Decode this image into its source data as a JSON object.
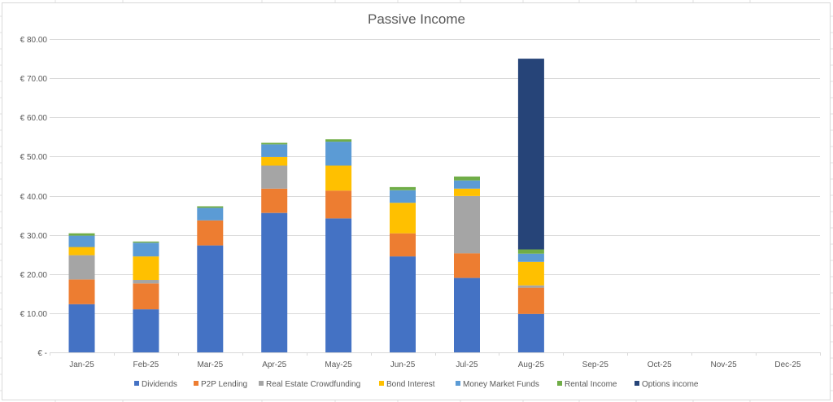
{
  "chart_data": {
    "type": "bar",
    "stacked": true,
    "title": "Passive Income",
    "xlabel": "",
    "ylabel": "",
    "ylim": [
      0,
      80
    ],
    "y_ticks": [
      0,
      10,
      20,
      30,
      40,
      50,
      60,
      70,
      80
    ],
    "y_tick_labels": [
      "€ -",
      "€ 10.00",
      "€ 20.00",
      "€ 30.00",
      "€ 40.00",
      "€ 50.00",
      "€ 60.00",
      "€ 70.00",
      "€ 80.00"
    ],
    "grid": true,
    "legend_position": "bottom",
    "categories": [
      "Jan-25",
      "Feb-25",
      "Mar-25",
      "Apr-25",
      "May-25",
      "Jun-25",
      "Jul-25",
      "Aug-25",
      "Sep-25",
      "Oct-25",
      "Nov-25",
      "Dec-25"
    ],
    "series": [
      {
        "name": "Dividends",
        "color": "#4472C4",
        "values": [
          12.3,
          11.0,
          27.3,
          35.6,
          34.2,
          24.5,
          19.0,
          9.8,
          0,
          0,
          0,
          0
        ]
      },
      {
        "name": "P2P Lending",
        "color": "#ED7D31",
        "values": [
          6.3,
          6.6,
          6.4,
          6.2,
          7.1,
          5.9,
          6.3,
          6.7,
          0,
          0,
          0,
          0
        ]
      },
      {
        "name": "Real Estate Crowdfunding",
        "color": "#A5A5A5",
        "values": [
          6.2,
          0.9,
          0,
          5.9,
          0,
          0,
          14.6,
          0.6,
          0,
          0,
          0,
          0
        ]
      },
      {
        "name": "Bond Interest",
        "color": "#FFC000",
        "values": [
          2.1,
          6.0,
          0,
          2.2,
          6.4,
          7.8,
          1.9,
          6.0,
          0,
          0,
          0,
          0
        ]
      },
      {
        "name": "Money Market Funds",
        "color": "#5B9BD5",
        "values": [
          2.9,
          3.5,
          3.2,
          3.2,
          6.1,
          3.2,
          2.1,
          2.1,
          0,
          0,
          0,
          0
        ]
      },
      {
        "name": "Rental Income",
        "color": "#70AD47",
        "values": [
          0.6,
          0.3,
          0.4,
          0.4,
          0.6,
          0.8,
          1.0,
          1.1,
          0,
          0,
          0,
          0
        ]
      },
      {
        "name": "Options income",
        "color": "#264478",
        "values": [
          0,
          0,
          0,
          0,
          0,
          0,
          0,
          48.7,
          0,
          0,
          0,
          0
        ]
      }
    ]
  },
  "colors": {
    "gridline": "#d9d9d9",
    "text": "#595959",
    "sheet_grid": "#e2e2e2"
  }
}
